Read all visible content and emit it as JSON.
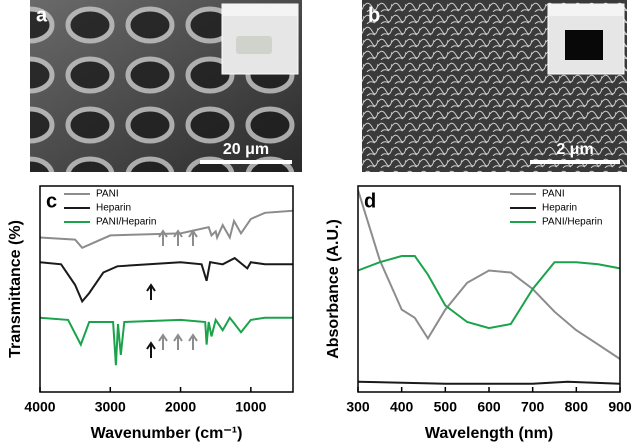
{
  "images": [
    {
      "label": "a",
      "scale_bar": "20 μm"
    },
    {
      "label": "b",
      "scale_bar": "2 μm"
    }
  ],
  "chart_data": [
    {
      "type": "line",
      "panel_label": "c",
      "xlabel": "Wavenumber (cm⁻¹)",
      "ylabel": "Transmittance (%)",
      "xlim": [
        4000,
        400
      ],
      "xticks": [
        4000,
        3000,
        2000,
        1000
      ],
      "ylim": [
        0,
        100
      ],
      "legend": "top-left",
      "series": [
        {
          "name": "PANI",
          "color": "#8c8c8c",
          "x": [
            4000,
            3500,
            3400,
            3000,
            2000,
            1600,
            1560,
            1500,
            1480,
            1400,
            1300,
            1240,
            1140,
            1000,
            800,
            400
          ],
          "values": [
            75,
            74,
            70,
            76,
            77,
            80,
            76,
            78,
            75,
            81,
            75,
            83,
            77,
            84,
            87,
            88
          ]
        },
        {
          "name": "Heparin",
          "color": "#1a1a1a",
          "x": [
            4000,
            3700,
            3500,
            3400,
            3300,
            3100,
            2900,
            2000,
            1700,
            1630,
            1580,
            1400,
            1230,
            1050,
            1000,
            800,
            400
          ],
          "values": [
            63,
            62,
            52,
            44,
            48,
            58,
            61,
            63,
            62,
            54,
            63,
            62,
            65,
            60,
            63,
            62,
            62
          ]
        },
        {
          "name": "PANI/Heparin",
          "color": "#1aa34a",
          "x": [
            4000,
            3600,
            3420,
            3300,
            2960,
            2920,
            2890,
            2850,
            2800,
            2000,
            1650,
            1630,
            1600,
            1560,
            1500,
            1400,
            1300,
            1230,
            1140,
            1000,
            800,
            400
          ],
          "values": [
            36,
            35,
            23,
            34,
            34,
            13,
            33,
            18,
            34,
            35,
            34,
            23,
            34,
            27,
            35,
            30,
            36,
            33,
            29,
            35,
            36,
            36
          ]
        }
      ]
    },
    {
      "type": "line",
      "panel_label": "d",
      "xlabel": "Wavelength (nm)",
      "ylabel": "Absorbance (A.U.)",
      "xlim": [
        300,
        900
      ],
      "xticks": [
        300,
        400,
        500,
        600,
        700,
        800,
        900
      ],
      "ylim": [
        0,
        100
      ],
      "legend": "top-right",
      "series": [
        {
          "name": "PANI",
          "color": "#8c8c8c",
          "x": [
            300,
            350,
            400,
            430,
            460,
            500,
            550,
            600,
            650,
            700,
            750,
            800,
            850,
            900
          ],
          "values": [
            98,
            64,
            40,
            36,
            26,
            40,
            53,
            59,
            58,
            50,
            39,
            30,
            23,
            16
          ]
        },
        {
          "name": "Heparin",
          "color": "#1a1a1a",
          "x": [
            300,
            500,
            700,
            780,
            900
          ],
          "values": [
            5,
            4,
            4,
            5,
            4
          ]
        },
        {
          "name": "PANI/Heparin",
          "color": "#1aa34a",
          "x": [
            300,
            350,
            400,
            430,
            460,
            500,
            550,
            600,
            650,
            700,
            750,
            800,
            850,
            900
          ],
          "values": [
            59,
            63,
            66,
            66,
            57,
            42,
            34,
            31,
            33,
            50,
            63,
            63,
            62,
            60
          ]
        }
      ]
    }
  ]
}
